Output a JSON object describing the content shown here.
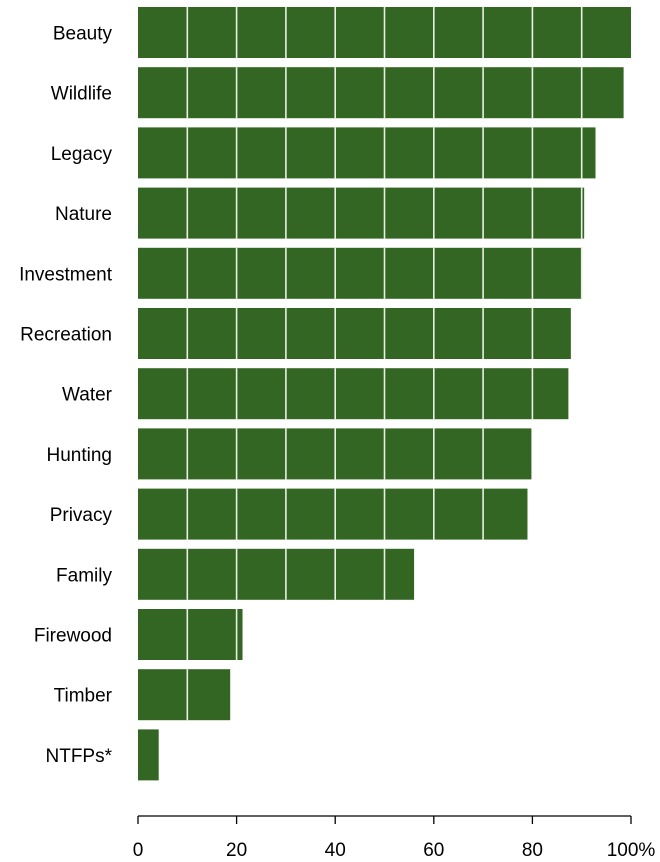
{
  "chart_data": {
    "type": "bar",
    "orientation": "horizontal",
    "categories": [
      "Beauty",
      "Wildlife",
      "Legacy",
      "Nature",
      "Investment",
      "Recreation",
      "Water",
      "Hunting",
      "Privacy",
      "Family",
      "Firewood",
      "Timber",
      "NTFPs*"
    ],
    "values": [
      100,
      98.5,
      92.8,
      90.5,
      90.1,
      87.8,
      87.3,
      79.8,
      79.0,
      56.0,
      21.2,
      18.7,
      4.2
    ],
    "xlim": [
      0,
      100
    ],
    "ticks": [
      0,
      20,
      40,
      60,
      80,
      100
    ],
    "tick_labels": [
      "0",
      "20",
      "40",
      "60",
      "80",
      "100%"
    ],
    "bar_segment_width": 10,
    "grid": false,
    "title": "",
    "xlabel": "",
    "ylabel": ""
  },
  "colors": {
    "bar": "#336622",
    "segment_line": "#e8efe4",
    "axis": "#000000"
  }
}
